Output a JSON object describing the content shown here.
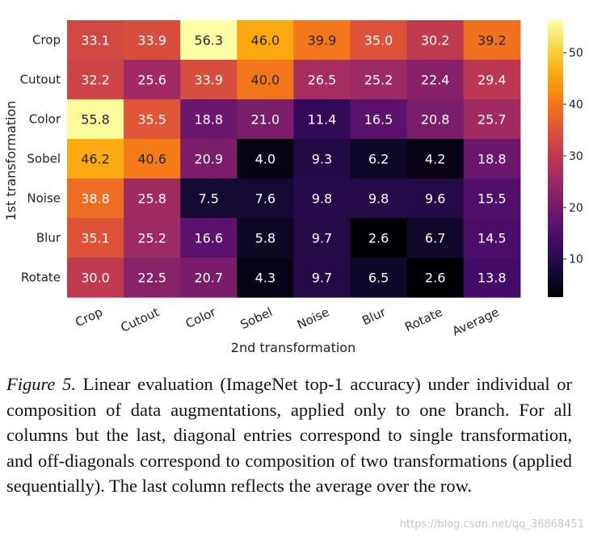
{
  "chart_data": {
    "type": "heatmap",
    "xlabel": "2nd transformation",
    "ylabel": "1st transformation",
    "x_categories": [
      "Crop",
      "Cutout",
      "Color",
      "Sobel",
      "Noise",
      "Blur",
      "Rotate",
      "Average"
    ],
    "y_categories": [
      "Crop",
      "Cutout",
      "Color",
      "Sobel",
      "Noise",
      "Blur",
      "Rotate"
    ],
    "values": [
      [
        33.1,
        33.9,
        56.3,
        46.0,
        39.9,
        35.0,
        30.2,
        39.2
      ],
      [
        32.2,
        25.6,
        33.9,
        40.0,
        26.5,
        25.2,
        22.4,
        29.4
      ],
      [
        55.8,
        35.5,
        18.8,
        21.0,
        11.4,
        16.5,
        20.8,
        25.7
      ],
      [
        46.2,
        40.6,
        20.9,
        4.0,
        9.3,
        6.2,
        4.2,
        18.8
      ],
      [
        38.8,
        25.8,
        7.5,
        7.6,
        9.8,
        9.8,
        9.6,
        15.5
      ],
      [
        35.1,
        25.2,
        16.6,
        5.8,
        9.7,
        2.6,
        6.7,
        14.5
      ],
      [
        30.0,
        22.5,
        20.7,
        4.3,
        9.7,
        6.5,
        2.6,
        13.8
      ]
    ],
    "colormap": "inferno",
    "vmin": 2.6,
    "vmax": 56.3,
    "colorbar_ticks": [
      10,
      20,
      30,
      40,
      50
    ]
  },
  "caption": {
    "label": "Figure 5.",
    "text": " Linear evaluation (ImageNet top-1 accuracy) under individual or composition of data augmentations, applied only to one branch. For all columns but the last, diagonal entries correspond to single transformation, and off-diagonals correspond to composition of two transformations (applied sequentially). The last column reflects the average over the row."
  },
  "watermark": "https://blog.csdn.net/qq_36868451"
}
